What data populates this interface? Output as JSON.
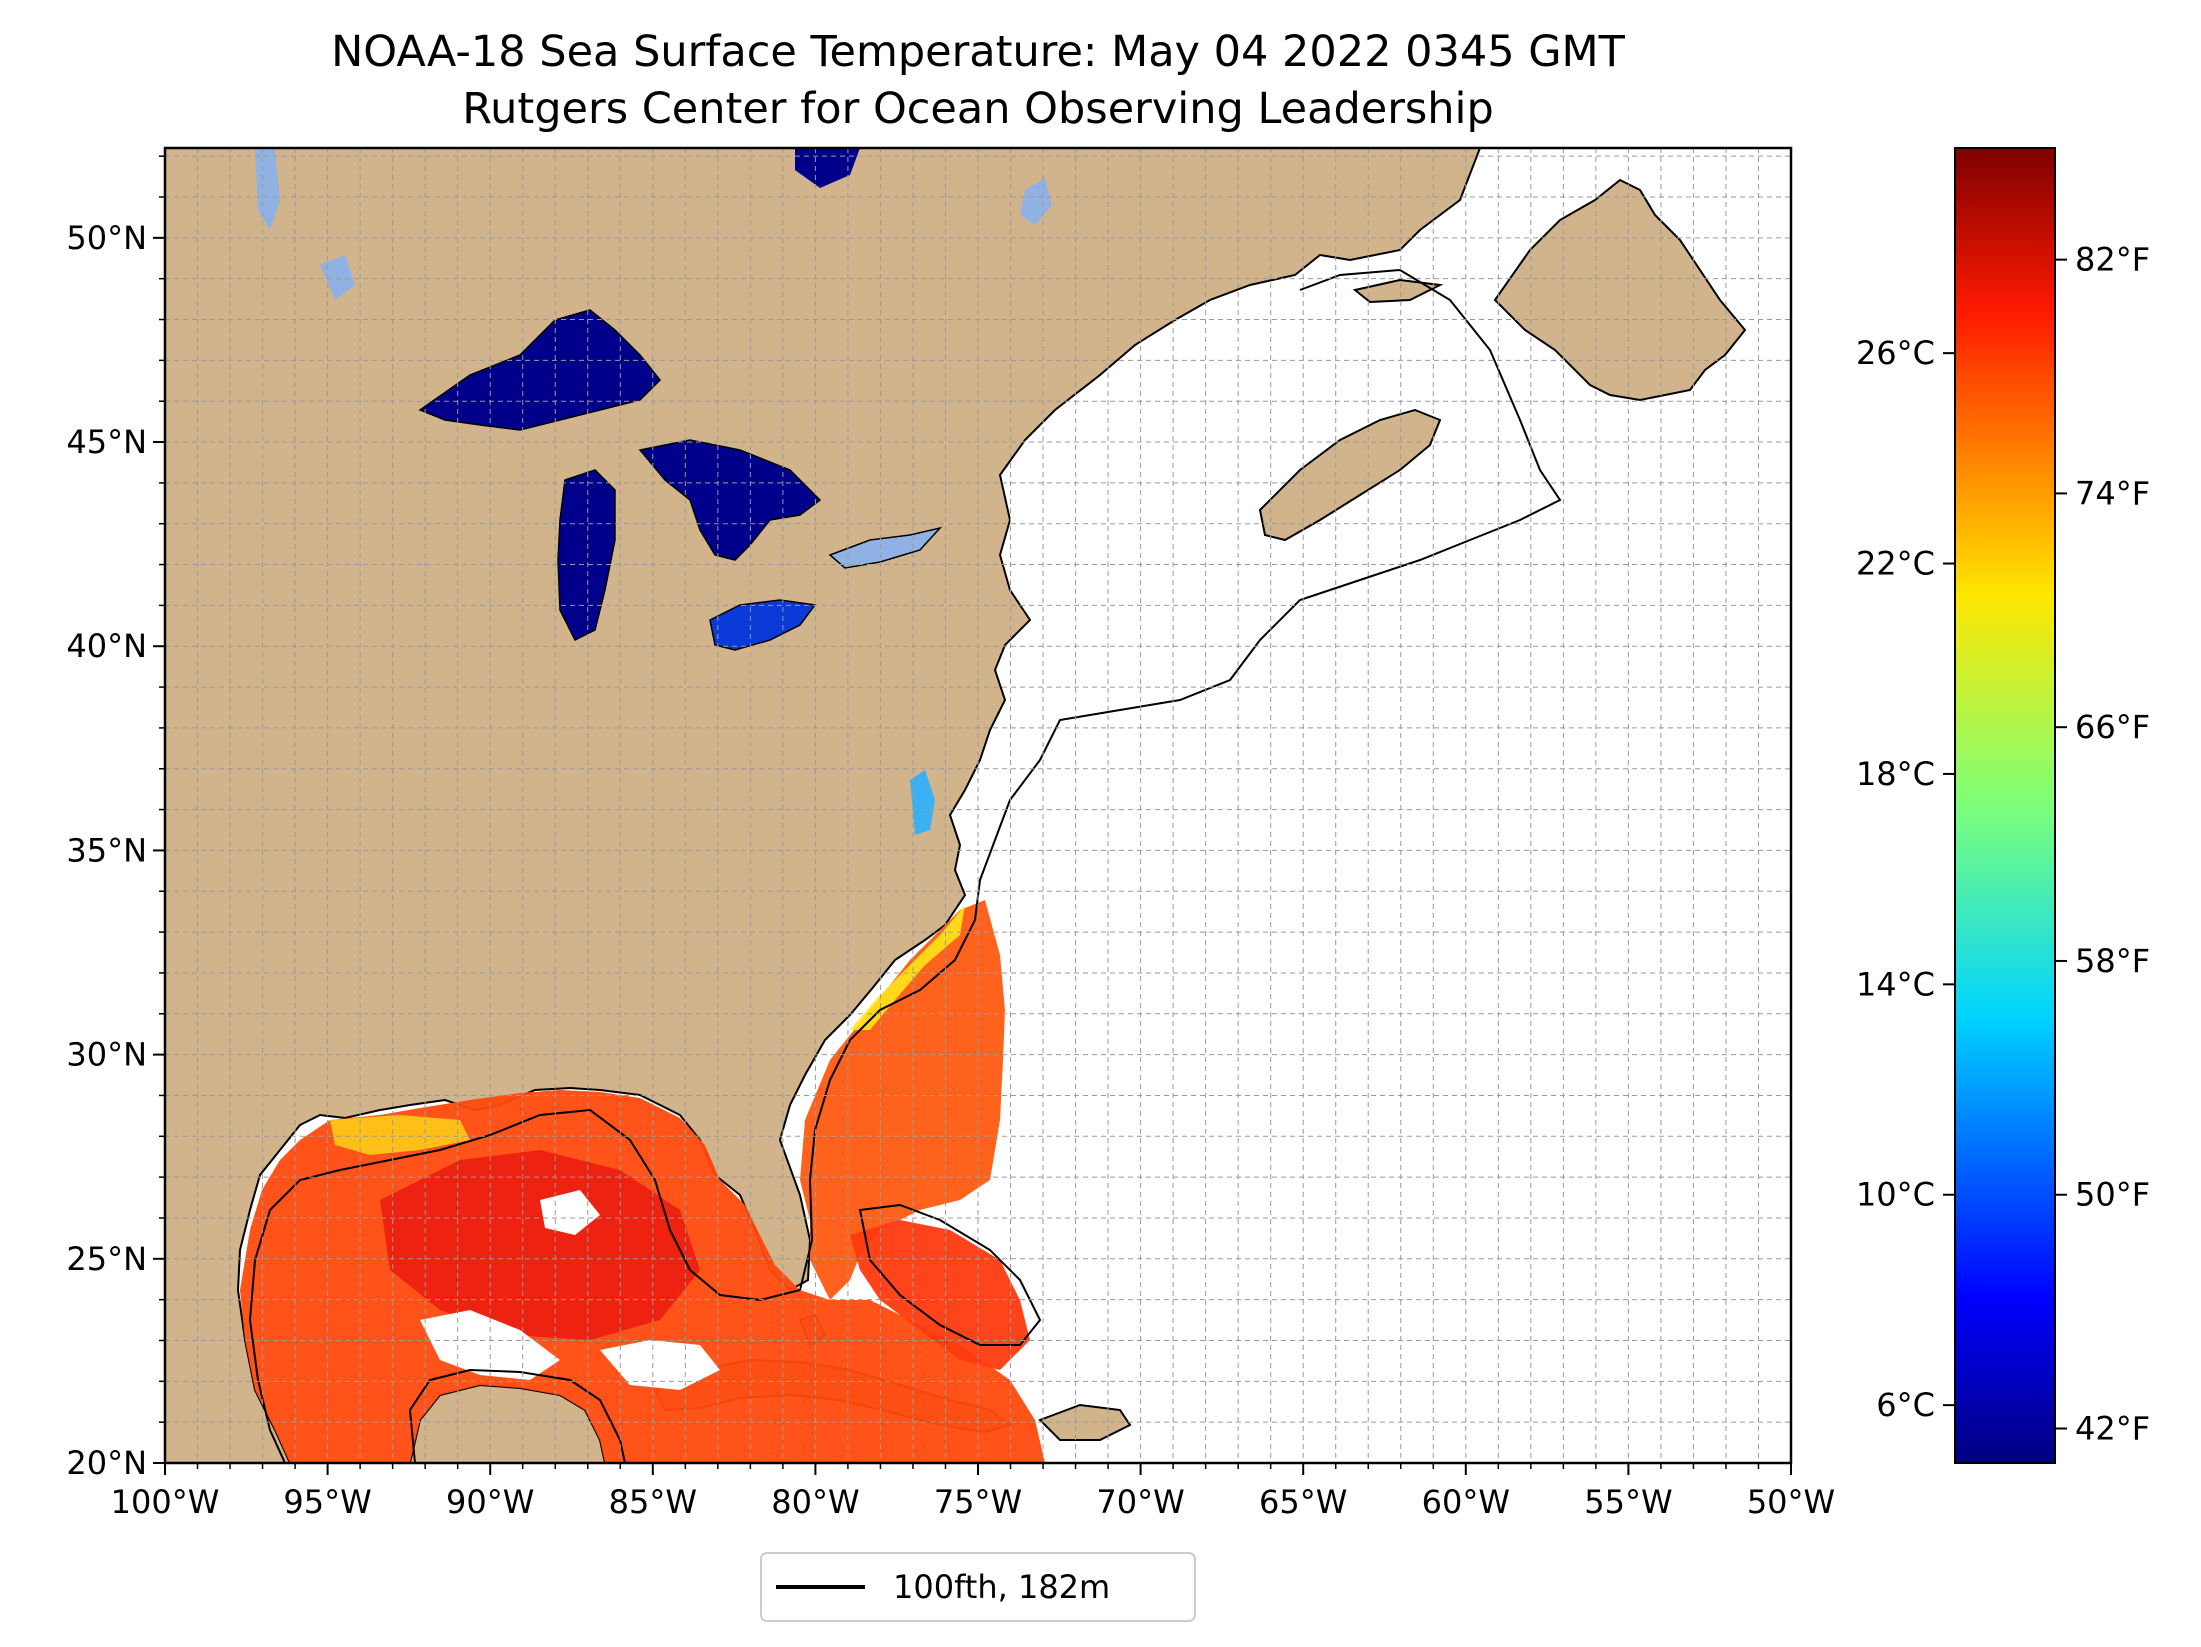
{
  "title": {
    "line1": "NOAA-18 Sea Surface Temperature: May 04 2022 0345 GMT",
    "line2": "Rutgers Center for Ocean Observing Leadership"
  },
  "map": {
    "lon_range": [
      -100,
      -50
    ],
    "lat_range": [
      20,
      52.2
    ],
    "lon_ticks": [
      {
        "value": -100,
        "label": "100°W"
      },
      {
        "value": -95,
        "label": "95°W"
      },
      {
        "value": -90,
        "label": "90°W"
      },
      {
        "value": -85,
        "label": "85°W"
      },
      {
        "value": -80,
        "label": "80°W"
      },
      {
        "value": -75,
        "label": "75°W"
      },
      {
        "value": -70,
        "label": "70°W"
      },
      {
        "value": -65,
        "label": "65°W"
      },
      {
        "value": -60,
        "label": "60°W"
      },
      {
        "value": -55,
        "label": "55°W"
      },
      {
        "value": -50,
        "label": "50°W"
      }
    ],
    "lat_ticks": [
      {
        "value": 20,
        "label": "20°N"
      },
      {
        "value": 25,
        "label": "25°N"
      },
      {
        "value": 30,
        "label": "30°N"
      },
      {
        "value": 35,
        "label": "35°N"
      },
      {
        "value": 40,
        "label": "40°N"
      },
      {
        "value": 45,
        "label": "45°N"
      },
      {
        "value": 50,
        "label": "50°N"
      }
    ],
    "grid": true,
    "colors": {
      "land": "#d2b48c",
      "great_lakes": "#00008b",
      "inland_lakes": "#8fb1e3",
      "ocean_no_data": "#ffffff",
      "sst_warm": "#ff4500",
      "sst_mid": "#ffd700",
      "sst_cool": "#40c0ff"
    }
  },
  "colorbar": {
    "celsius_ticks": [
      {
        "value": 6,
        "label": "6°C"
      },
      {
        "value": 10,
        "label": "10°C"
      },
      {
        "value": 14,
        "label": "14°C"
      },
      {
        "value": 18,
        "label": "18°C"
      },
      {
        "value": 22,
        "label": "22°C"
      },
      {
        "value": 26,
        "label": "26°C"
      }
    ],
    "fahrenheit_ticks": [
      {
        "value": 42,
        "label": "42°F"
      },
      {
        "value": 50,
        "label": "50°F"
      },
      {
        "value": 58,
        "label": "58°F"
      },
      {
        "value": 66,
        "label": "66°F"
      },
      {
        "value": 74,
        "label": "74°F"
      },
      {
        "value": 82,
        "label": "82°F"
      }
    ],
    "range_c": [
      4.9,
      29.9
    ],
    "colormap": "jet"
  },
  "legend": {
    "label": "100fth, 182m",
    "placement": "bottom-center"
  }
}
